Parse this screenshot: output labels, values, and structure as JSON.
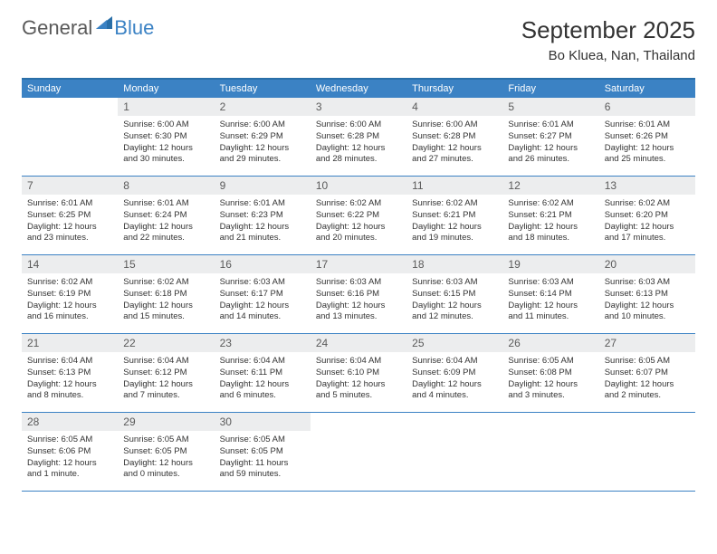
{
  "logo": {
    "word1": "General",
    "word2": "Blue",
    "word1_color": "#5a5a5a",
    "word2_color": "#3b82c4"
  },
  "header": {
    "title": "September 2025",
    "location": "Bo Kluea, Nan, Thailand"
  },
  "calendar": {
    "type": "table",
    "header_bg": "#3b82c4",
    "header_fg": "#ffffff",
    "daynum_bg": "#ecedee",
    "daynum_fg": "#5a5a5a",
    "rule_color": "#3b82c4",
    "cell_fontsize": 9.5,
    "weekdays": [
      "Sunday",
      "Monday",
      "Tuesday",
      "Wednesday",
      "Thursday",
      "Friday",
      "Saturday"
    ],
    "weeks": [
      [
        {
          "n": "",
          "sr": "",
          "ss": "",
          "d1": "",
          "d2": ""
        },
        {
          "n": "1",
          "sr": "Sunrise: 6:00 AM",
          "ss": "Sunset: 6:30 PM",
          "d1": "Daylight: 12 hours",
          "d2": "and 30 minutes."
        },
        {
          "n": "2",
          "sr": "Sunrise: 6:00 AM",
          "ss": "Sunset: 6:29 PM",
          "d1": "Daylight: 12 hours",
          "d2": "and 29 minutes."
        },
        {
          "n": "3",
          "sr": "Sunrise: 6:00 AM",
          "ss": "Sunset: 6:28 PM",
          "d1": "Daylight: 12 hours",
          "d2": "and 28 minutes."
        },
        {
          "n": "4",
          "sr": "Sunrise: 6:00 AM",
          "ss": "Sunset: 6:28 PM",
          "d1": "Daylight: 12 hours",
          "d2": "and 27 minutes."
        },
        {
          "n": "5",
          "sr": "Sunrise: 6:01 AM",
          "ss": "Sunset: 6:27 PM",
          "d1": "Daylight: 12 hours",
          "d2": "and 26 minutes."
        },
        {
          "n": "6",
          "sr": "Sunrise: 6:01 AM",
          "ss": "Sunset: 6:26 PM",
          "d1": "Daylight: 12 hours",
          "d2": "and 25 minutes."
        }
      ],
      [
        {
          "n": "7",
          "sr": "Sunrise: 6:01 AM",
          "ss": "Sunset: 6:25 PM",
          "d1": "Daylight: 12 hours",
          "d2": "and 23 minutes."
        },
        {
          "n": "8",
          "sr": "Sunrise: 6:01 AM",
          "ss": "Sunset: 6:24 PM",
          "d1": "Daylight: 12 hours",
          "d2": "and 22 minutes."
        },
        {
          "n": "9",
          "sr": "Sunrise: 6:01 AM",
          "ss": "Sunset: 6:23 PM",
          "d1": "Daylight: 12 hours",
          "d2": "and 21 minutes."
        },
        {
          "n": "10",
          "sr": "Sunrise: 6:02 AM",
          "ss": "Sunset: 6:22 PM",
          "d1": "Daylight: 12 hours",
          "d2": "and 20 minutes."
        },
        {
          "n": "11",
          "sr": "Sunrise: 6:02 AM",
          "ss": "Sunset: 6:21 PM",
          "d1": "Daylight: 12 hours",
          "d2": "and 19 minutes."
        },
        {
          "n": "12",
          "sr": "Sunrise: 6:02 AM",
          "ss": "Sunset: 6:21 PM",
          "d1": "Daylight: 12 hours",
          "d2": "and 18 minutes."
        },
        {
          "n": "13",
          "sr": "Sunrise: 6:02 AM",
          "ss": "Sunset: 6:20 PM",
          "d1": "Daylight: 12 hours",
          "d2": "and 17 minutes."
        }
      ],
      [
        {
          "n": "14",
          "sr": "Sunrise: 6:02 AM",
          "ss": "Sunset: 6:19 PM",
          "d1": "Daylight: 12 hours",
          "d2": "and 16 minutes."
        },
        {
          "n": "15",
          "sr": "Sunrise: 6:02 AM",
          "ss": "Sunset: 6:18 PM",
          "d1": "Daylight: 12 hours",
          "d2": "and 15 minutes."
        },
        {
          "n": "16",
          "sr": "Sunrise: 6:03 AM",
          "ss": "Sunset: 6:17 PM",
          "d1": "Daylight: 12 hours",
          "d2": "and 14 minutes."
        },
        {
          "n": "17",
          "sr": "Sunrise: 6:03 AM",
          "ss": "Sunset: 6:16 PM",
          "d1": "Daylight: 12 hours",
          "d2": "and 13 minutes."
        },
        {
          "n": "18",
          "sr": "Sunrise: 6:03 AM",
          "ss": "Sunset: 6:15 PM",
          "d1": "Daylight: 12 hours",
          "d2": "and 12 minutes."
        },
        {
          "n": "19",
          "sr": "Sunrise: 6:03 AM",
          "ss": "Sunset: 6:14 PM",
          "d1": "Daylight: 12 hours",
          "d2": "and 11 minutes."
        },
        {
          "n": "20",
          "sr": "Sunrise: 6:03 AM",
          "ss": "Sunset: 6:13 PM",
          "d1": "Daylight: 12 hours",
          "d2": "and 10 minutes."
        }
      ],
      [
        {
          "n": "21",
          "sr": "Sunrise: 6:04 AM",
          "ss": "Sunset: 6:13 PM",
          "d1": "Daylight: 12 hours",
          "d2": "and 8 minutes."
        },
        {
          "n": "22",
          "sr": "Sunrise: 6:04 AM",
          "ss": "Sunset: 6:12 PM",
          "d1": "Daylight: 12 hours",
          "d2": "and 7 minutes."
        },
        {
          "n": "23",
          "sr": "Sunrise: 6:04 AM",
          "ss": "Sunset: 6:11 PM",
          "d1": "Daylight: 12 hours",
          "d2": "and 6 minutes."
        },
        {
          "n": "24",
          "sr": "Sunrise: 6:04 AM",
          "ss": "Sunset: 6:10 PM",
          "d1": "Daylight: 12 hours",
          "d2": "and 5 minutes."
        },
        {
          "n": "25",
          "sr": "Sunrise: 6:04 AM",
          "ss": "Sunset: 6:09 PM",
          "d1": "Daylight: 12 hours",
          "d2": "and 4 minutes."
        },
        {
          "n": "26",
          "sr": "Sunrise: 6:05 AM",
          "ss": "Sunset: 6:08 PM",
          "d1": "Daylight: 12 hours",
          "d2": "and 3 minutes."
        },
        {
          "n": "27",
          "sr": "Sunrise: 6:05 AM",
          "ss": "Sunset: 6:07 PM",
          "d1": "Daylight: 12 hours",
          "d2": "and 2 minutes."
        }
      ],
      [
        {
          "n": "28",
          "sr": "Sunrise: 6:05 AM",
          "ss": "Sunset: 6:06 PM",
          "d1": "Daylight: 12 hours",
          "d2": "and 1 minute."
        },
        {
          "n": "29",
          "sr": "Sunrise: 6:05 AM",
          "ss": "Sunset: 6:05 PM",
          "d1": "Daylight: 12 hours",
          "d2": "and 0 minutes."
        },
        {
          "n": "30",
          "sr": "Sunrise: 6:05 AM",
          "ss": "Sunset: 6:05 PM",
          "d1": "Daylight: 11 hours",
          "d2": "and 59 minutes."
        },
        {
          "n": "",
          "sr": "",
          "ss": "",
          "d1": "",
          "d2": ""
        },
        {
          "n": "",
          "sr": "",
          "ss": "",
          "d1": "",
          "d2": ""
        },
        {
          "n": "",
          "sr": "",
          "ss": "",
          "d1": "",
          "d2": ""
        },
        {
          "n": "",
          "sr": "",
          "ss": "",
          "d1": "",
          "d2": ""
        }
      ]
    ]
  }
}
